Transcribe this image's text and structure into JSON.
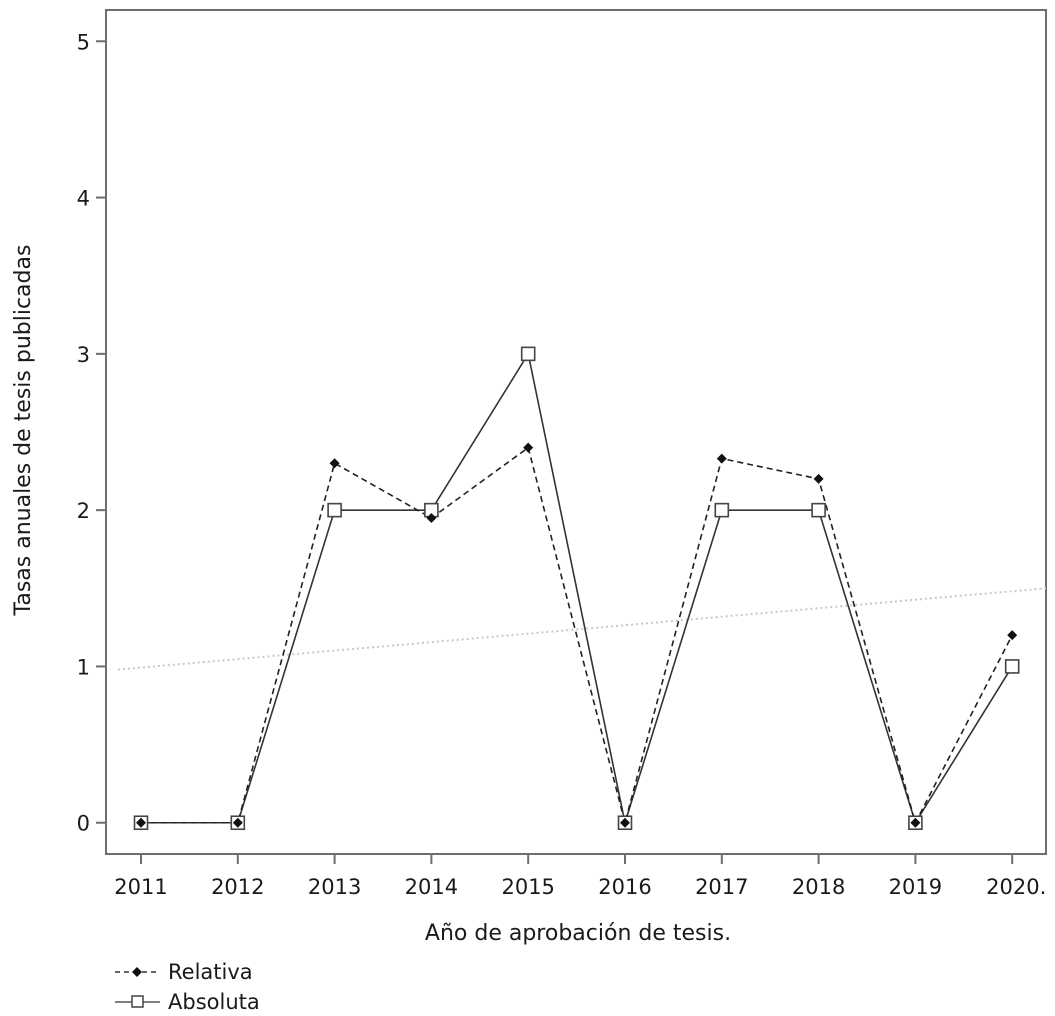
{
  "chart_data": {
    "type": "line",
    "title": "",
    "xlabel": "Año de aprobación de tesis.",
    "ylabel": "Tasas anuales de tesis publicadas",
    "categories": [
      "2011",
      "2012",
      "2013",
      "2014",
      "2015",
      "2016",
      "2017",
      "2018",
      "2019",
      "2020."
    ],
    "ylim": [
      -0.2,
      5.2
    ],
    "yticks": [
      0,
      1,
      2,
      3,
      4,
      5
    ],
    "grid": false,
    "legend_position": "bottom-left",
    "series": [
      {
        "name": "Relativa",
        "values": [
          0,
          0,
          2.3,
          1.95,
          2.4,
          0,
          2.33,
          2.2,
          0,
          1.2
        ],
        "line_style": "dashed",
        "marker": "filled-diamond",
        "color": "#222222"
      },
      {
        "name": "Absoluta",
        "values": [
          0,
          0,
          2,
          2,
          3,
          0,
          2,
          2,
          0,
          1
        ],
        "line_style": "solid",
        "marker": "open-square",
        "color": "#333333"
      }
    ],
    "trend_line": {
      "style": "dotted",
      "color": "#c8c8c8",
      "start_value": 0.98,
      "end_value": 1.5
    }
  }
}
